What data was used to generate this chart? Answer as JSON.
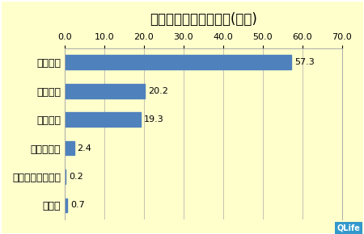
{
  "title": "昨シーズンの処方比率(平均)",
  "categories": [
    "タミフル",
    "イナビル",
    "リレンザ",
    "ラビアクタ",
    "塩酸アマンタジン",
    "その他"
  ],
  "values": [
    57.3,
    20.2,
    19.3,
    2.4,
    0.2,
    0.7
  ],
  "bar_color": "#4f81bd",
  "background_color": "#ffffcc",
  "plot_bg_color": "#ffffcc",
  "xlim": [
    0,
    70
  ],
  "xticks": [
    0.0,
    10.0,
    20.0,
    30.0,
    40.0,
    50.0,
    60.0,
    70.0
  ],
  "title_fontsize": 12,
  "label_fontsize": 9,
  "tick_fontsize": 8,
  "value_fontsize": 8,
  "bar_height": 0.5,
  "grid_color": "#aaaaaa",
  "border_color": "#aaaaaa",
  "qlife_bg": "#3399cc",
  "qlife_text": "QLife",
  "qlife_fontsize": 7
}
